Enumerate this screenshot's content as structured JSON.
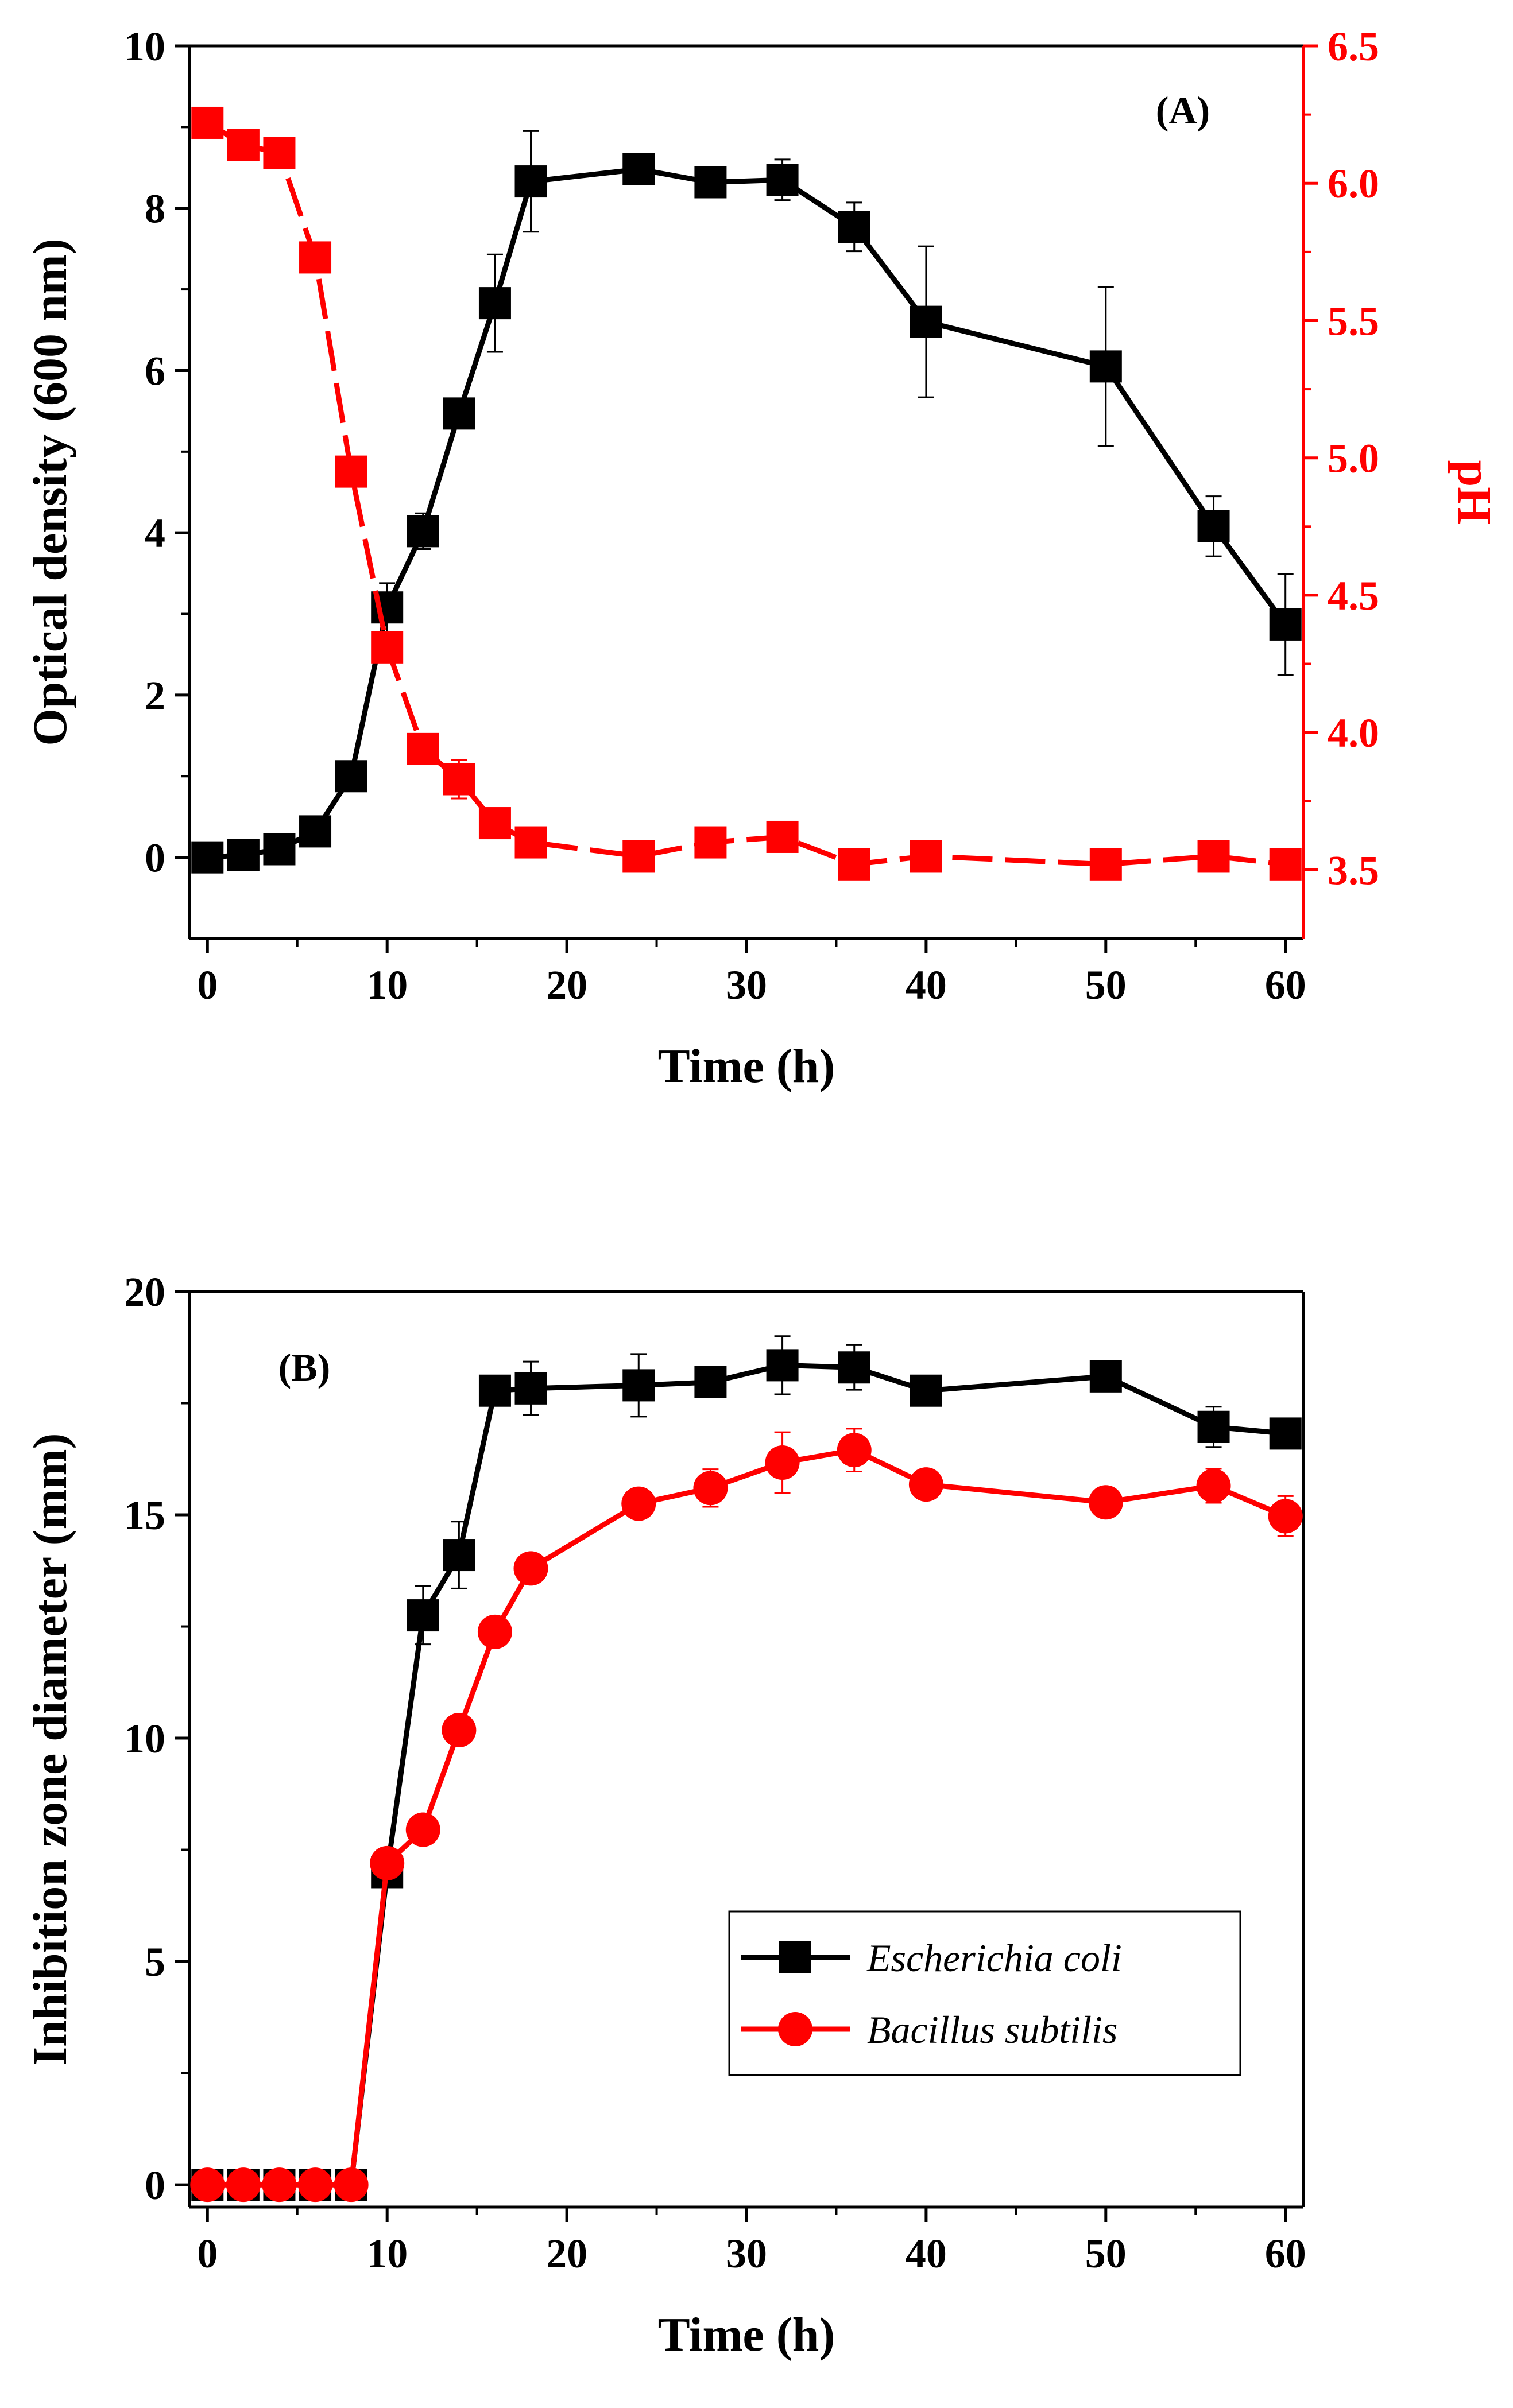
{
  "chart_data": [
    {
      "panel_label": "(A)",
      "type": "line",
      "xlabel": "Time (h)",
      "ylabel": "Optical density (600 nm)",
      "y2label": "pH",
      "xlim": [
        -1,
        61
      ],
      "ylim": [
        -1,
        10
      ],
      "y2lim": [
        3.25,
        6.5
      ],
      "xticks": [
        "0",
        "10",
        "20",
        "30",
        "40",
        "50",
        "60"
      ],
      "yticks": [
        "0",
        "2",
        "4",
        "6",
        "8",
        "10"
      ],
      "y2ticks": [
        "3.5",
        "4.0",
        "4.5",
        "5.0",
        "5.5",
        "6.0",
        "6.5"
      ],
      "series": [
        {
          "name": "Optical density",
          "axis": "left",
          "color": "#000000",
          "marker": "square",
          "dash": "solid",
          "x": [
            0,
            2,
            4,
            6,
            8,
            10,
            12,
            14,
            16,
            18,
            24,
            28,
            32,
            36,
            40,
            50,
            56,
            60
          ],
          "values": [
            0.0,
            0.03,
            0.1,
            0.32,
            1.0,
            3.08,
            4.02,
            5.47,
            6.83,
            8.33,
            8.48,
            8.32,
            8.35,
            7.77,
            6.6,
            6.05,
            4.08,
            2.87
          ],
          "errors": [
            0.02,
            0.02,
            0.04,
            0.05,
            0.08,
            0.3,
            0.22,
            0.1,
            0.6,
            0.62,
            0.1,
            0.1,
            0.25,
            0.3,
            0.93,
            0.98,
            0.37,
            0.62
          ]
        },
        {
          "name": "pH",
          "axis": "right",
          "color": "#ff0000",
          "marker": "square",
          "dash": "dashed",
          "x": [
            0,
            2,
            4,
            6,
            8,
            10,
            12,
            14,
            16,
            18,
            24,
            28,
            32,
            36,
            40,
            50,
            56,
            60
          ],
          "values": [
            6.22,
            6.14,
            6.11,
            5.73,
            4.95,
            4.31,
            3.94,
            3.83,
            3.67,
            3.6,
            3.55,
            3.6,
            3.62,
            3.52,
            3.55,
            3.52,
            3.55,
            3.52
          ],
          "errors": [
            0.01,
            0.01,
            0.01,
            0.01,
            0.01,
            0.01,
            0.02,
            0.07,
            0.02,
            0.02,
            0.02,
            0.04,
            0.02,
            0.02,
            0.02,
            0.02,
            0.02,
            0.02
          ]
        }
      ]
    },
    {
      "panel_label": "(B)",
      "type": "line",
      "xlabel": "Time (h)",
      "ylabel": "Inhibition zone diameter (mm)",
      "xlim": [
        -1,
        61
      ],
      "ylim": [
        -0.5,
        20
      ],
      "xticks": [
        "0",
        "10",
        "20",
        "30",
        "40",
        "50",
        "60"
      ],
      "yticks": [
        "0",
        "5",
        "10",
        "15",
        "20"
      ],
      "legend_position": "bottom-right",
      "series": [
        {
          "name": "Escherichia coli",
          "color": "#000000",
          "marker": "square",
          "dash": "solid",
          "x": [
            0,
            2,
            4,
            6,
            8,
            10,
            12,
            14,
            16,
            18,
            24,
            28,
            32,
            36,
            40,
            50,
            56,
            60
          ],
          "values": [
            0,
            0,
            0,
            0,
            0,
            7.0,
            12.75,
            14.1,
            17.78,
            17.83,
            17.9,
            17.97,
            18.35,
            18.3,
            17.78,
            18.1,
            16.97,
            16.82
          ],
          "errors": [
            0,
            0,
            0,
            0,
            0,
            0.15,
            0.65,
            0.75,
            0.12,
            0.6,
            0.7,
            0.12,
            0.65,
            0.5,
            0.12,
            0.15,
            0.45,
            0.1
          ]
        },
        {
          "name": "Bacillus subtilis",
          "color": "#ff0000",
          "marker": "circle",
          "dash": "solid",
          "x": [
            0,
            2,
            4,
            6,
            8,
            10,
            12,
            14,
            16,
            18,
            24,
            28,
            32,
            36,
            40,
            50,
            56,
            60
          ],
          "values": [
            0,
            0,
            0,
            0,
            0,
            7.2,
            7.95,
            10.18,
            12.38,
            13.8,
            15.25,
            15.6,
            16.17,
            16.45,
            15.68,
            15.28,
            15.65,
            14.97
          ],
          "errors": [
            0,
            0,
            0,
            0,
            0,
            0.12,
            0.12,
            0.12,
            0.12,
            0.12,
            0.12,
            0.42,
            0.68,
            0.48,
            0.12,
            0.12,
            0.38,
            0.45
          ]
        }
      ]
    }
  ]
}
